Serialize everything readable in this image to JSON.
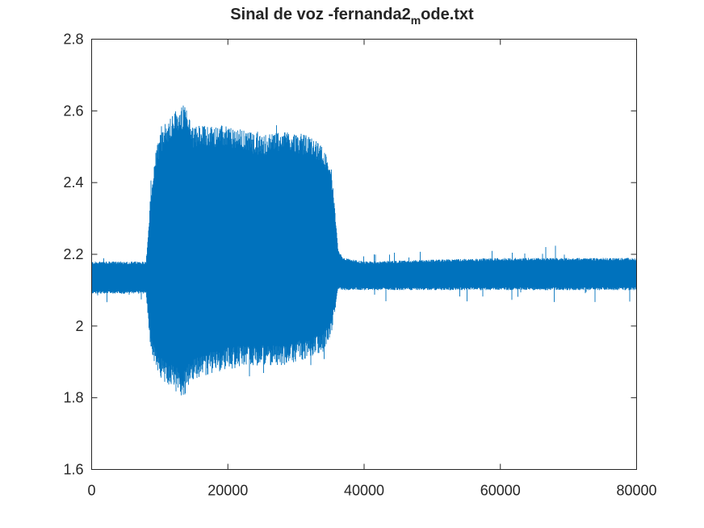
{
  "chart_data": {
    "type": "line",
    "title_parts": {
      "before": "Sinal de voz -fernanda2",
      "subscript": "m",
      "after": "ode.txt"
    },
    "xlabel": "",
    "ylabel": "",
    "xlim": [
      0,
      80000
    ],
    "ylim": [
      1.6,
      2.8
    ],
    "xticks": [
      0,
      20000,
      40000,
      60000,
      80000
    ],
    "yticks": [
      1.6,
      1.8,
      2,
      2.2,
      2.4,
      2.6,
      2.8
    ],
    "xtick_labels": [
      "0",
      "20000",
      "40000",
      "60000",
      "80000"
    ],
    "ytick_labels": [
      "1.6",
      "1.8",
      "2",
      "2.2",
      "2.4",
      "2.6",
      "2.8"
    ],
    "grid": false,
    "color": "#0072bd",
    "series": [
      {
        "envelope_x": [
          0,
          8000,
          8600,
          9500,
          10500,
          12000,
          13500,
          15000,
          20000,
          25000,
          28000,
          32000,
          34000,
          35200,
          35800,
          36200,
          37000,
          40000,
          60000,
          75000,
          80000
        ],
        "envelope_upper": [
          2.18,
          2.18,
          2.35,
          2.5,
          2.56,
          2.6,
          2.62,
          2.56,
          2.56,
          2.53,
          2.55,
          2.53,
          2.5,
          2.44,
          2.3,
          2.21,
          2.19,
          2.18,
          2.19,
          2.19,
          2.19
        ],
        "envelope_lower": [
          2.09,
          2.09,
          1.95,
          1.87,
          1.84,
          1.82,
          1.8,
          1.85,
          1.88,
          1.89,
          1.89,
          1.91,
          1.93,
          1.98,
          2.05,
          2.1,
          2.1,
          2.1,
          2.1,
          2.1,
          2.1
        ]
      }
    ]
  }
}
